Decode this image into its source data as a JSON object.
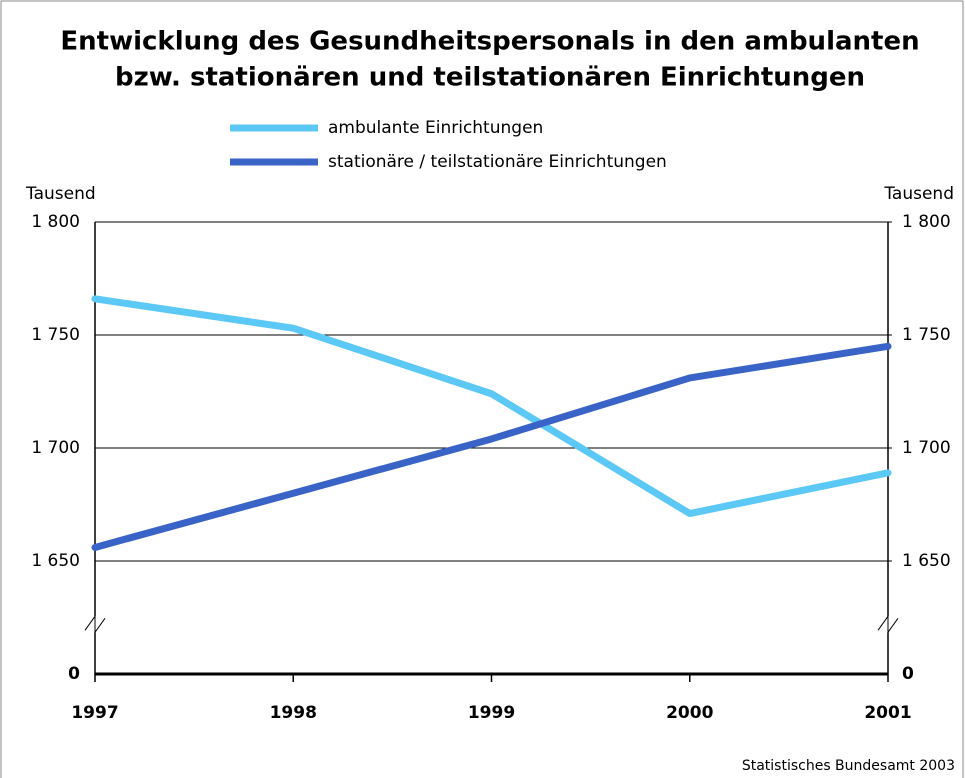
{
  "chart_data": {
    "type": "line",
    "title": [
      "Entwicklung des Gesundheitspersonals in den ambulanten",
      "bzw. stationären und teilstationären Einrichtungen"
    ],
    "y_label": "Tausend",
    "y2_label": "Tausend",
    "x": [
      1997,
      1998,
      1999,
      2000,
      2001
    ],
    "xlim": [
      1997,
      2001
    ],
    "xticks": [
      1997,
      1998,
      1999,
      2000,
      2001
    ],
    "ylim": [
      1600,
      1800
    ],
    "yticks": [
      {
        "value": 0,
        "label": "0"
      },
      {
        "value": 1650,
        "label": "1 650"
      },
      {
        "value": 1700,
        "label": "1 700"
      },
      {
        "value": 1750,
        "label": "1 750"
      },
      {
        "value": 1800,
        "label": "1 800"
      }
    ],
    "y2lim": [
      1600,
      1800
    ],
    "y2ticks": [
      {
        "value": 0,
        "label": "0"
      },
      {
        "value": 1650,
        "label": "1 650"
      },
      {
        "value": 1700,
        "label": "1 700"
      },
      {
        "value": 1750,
        "label": "1 750"
      },
      {
        "value": 1800,
        "label": "1 800"
      }
    ],
    "axis_break": true,
    "grid": true,
    "series": [
      {
        "name": "ambulante Einrichtungen",
        "color": "#5bc8f5",
        "values": [
          1766,
          1753,
          1724,
          1671,
          1689
        ]
      },
      {
        "name": "stationäre / teilstationäre Einrichtungen",
        "color": "#3a63c8",
        "values": [
          1656,
          1680,
          1704,
          1731,
          1745
        ]
      }
    ],
    "source": "Statistisches Bundesamt 2003"
  }
}
